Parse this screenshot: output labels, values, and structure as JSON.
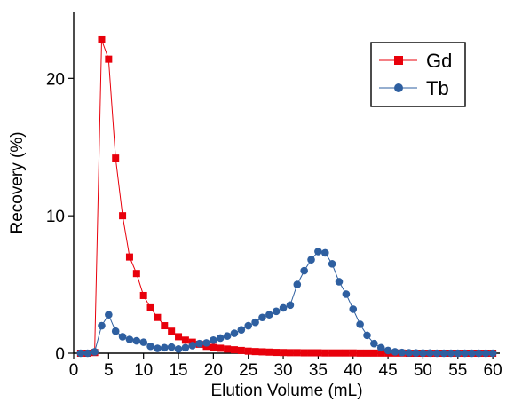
{
  "chart_data": {
    "type": "scatter",
    "title": "",
    "xlabel": "Elution Volume (mL)",
    "ylabel": "Recovery (%)",
    "xlim": [
      0,
      61
    ],
    "ylim": [
      0,
      24.8
    ],
    "x_ticks": [
      0,
      5,
      10,
      15,
      20,
      25,
      30,
      35,
      40,
      45,
      50,
      55,
      60
    ],
    "y_ticks": [
      0,
      10,
      20
    ],
    "x_tick_labels": [
      "0",
      "5",
      "10",
      "15",
      "20",
      "25",
      "30",
      "35",
      "40",
      "45",
      "50",
      "55",
      "60"
    ],
    "y_tick_labels": [
      "0",
      "10",
      "20"
    ],
    "grid": false,
    "legend_position": "top-right",
    "series": [
      {
        "name": "Gd",
        "color": "#e8000b",
        "marker": "square",
        "line": true,
        "x": [
          1,
          2,
          3,
          4,
          5,
          6,
          7,
          8,
          9,
          10,
          11,
          12,
          13,
          14,
          15,
          16,
          17,
          18,
          19,
          20,
          21,
          22,
          23,
          24,
          25,
          26,
          27,
          28,
          29,
          30,
          31,
          32,
          33,
          34,
          35,
          36,
          37,
          38,
          39,
          40,
          41,
          42,
          43,
          44,
          45,
          46,
          47,
          48,
          49,
          50,
          51,
          52,
          53,
          54,
          55,
          56,
          57,
          58,
          59,
          60
        ],
        "y": [
          0.0,
          0.0,
          0.05,
          22.8,
          21.4,
          14.2,
          10.0,
          7.0,
          5.8,
          4.2,
          3.3,
          2.6,
          2.0,
          1.6,
          1.2,
          0.95,
          0.8,
          0.65,
          0.5,
          0.42,
          0.36,
          0.3,
          0.25,
          0.2,
          0.15,
          0.12,
          0.1,
          0.08,
          0.06,
          0.05,
          0.04,
          0.04,
          0.03,
          0.03,
          0.03,
          0.02,
          0.02,
          0.02,
          0.02,
          0.02,
          0.01,
          0.01,
          0.01,
          0.01,
          0.01,
          0.01,
          0.01,
          0.0,
          0.0,
          0.0,
          0.0,
          0.0,
          0.0,
          0.0,
          0.0,
          0.0,
          0.0,
          0.0,
          0.0,
          0.0
        ]
      },
      {
        "name": "Tb",
        "color": "#2e5fa0",
        "marker": "circle",
        "line": true,
        "x": [
          1,
          2,
          3,
          4,
          5,
          6,
          7,
          8,
          9,
          10,
          11,
          12,
          13,
          14,
          15,
          16,
          17,
          18,
          19,
          20,
          21,
          22,
          23,
          24,
          25,
          26,
          27,
          28,
          29,
          30,
          31,
          32,
          33,
          34,
          35,
          36,
          37,
          38,
          39,
          40,
          41,
          42,
          43,
          44,
          45,
          46,
          47,
          48,
          49,
          50,
          51,
          52,
          53,
          54,
          55,
          56,
          57,
          58,
          59,
          60
        ],
        "y": [
          0.0,
          0.0,
          0.1,
          2.0,
          2.8,
          1.6,
          1.2,
          1.0,
          0.9,
          0.8,
          0.5,
          0.35,
          0.4,
          0.45,
          0.3,
          0.4,
          0.55,
          0.7,
          0.75,
          0.95,
          1.1,
          1.25,
          1.45,
          1.7,
          2.0,
          2.25,
          2.6,
          2.8,
          3.05,
          3.3,
          3.5,
          5.0,
          6.0,
          6.8,
          7.4,
          7.3,
          6.5,
          5.2,
          4.3,
          3.2,
          2.1,
          1.3,
          0.7,
          0.4,
          0.2,
          0.1,
          0.05,
          0.03,
          0.02,
          0.01,
          0.01,
          0.0,
          0.0,
          0.0,
          0.0,
          0.0,
          0.0,
          0.0,
          0.0,
          0.0
        ]
      }
    ]
  }
}
